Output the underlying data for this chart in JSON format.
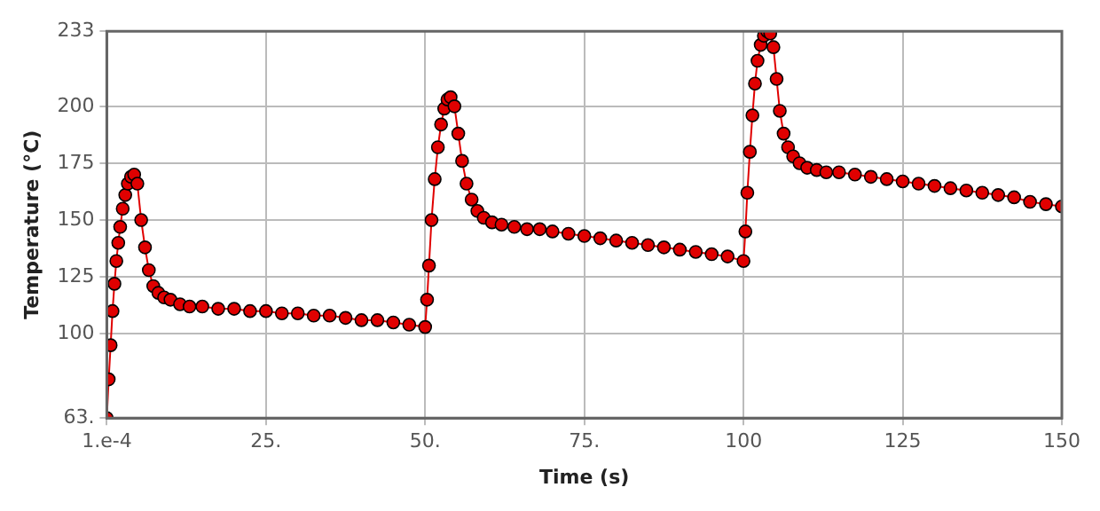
{
  "chart_data": {
    "type": "line",
    "xlabel": "Time (s)",
    "ylabel": "Temperature (°C)",
    "xlim": [
      0.0001,
      150
    ],
    "ylim": [
      63,
      233
    ],
    "xticks": [
      {
        "value": 0.0001,
        "label": "1.e-4"
      },
      {
        "value": 25,
        "label": "25."
      },
      {
        "value": 50,
        "label": "50."
      },
      {
        "value": 75,
        "label": "75."
      },
      100,
      125,
      150
    ],
    "yticks": [
      {
        "value": 63,
        "label": "63."
      },
      100,
      125,
      150,
      175,
      200,
      233
    ],
    "grid": true,
    "marker": "circle",
    "line_style": "solid",
    "series": [
      {
        "color": "#e00000",
        "x": [
          0.0001,
          0.3,
          0.6,
          0.9,
          1.2,
          1.5,
          1.8,
          2.1,
          2.5,
          2.9,
          3.3,
          3.8,
          4.3,
          4.8,
          5.4,
          6.0,
          6.6,
          7.3,
          8.1,
          9,
          10,
          11.5,
          13,
          15,
          17.5,
          20,
          22.5,
          25,
          27.5,
          30,
          32.5,
          35,
          37.5,
          40,
          42.5,
          45,
          47.5,
          50,
          50.3,
          50.6,
          51,
          51.5,
          52,
          52.5,
          53,
          53.5,
          54,
          54.6,
          55.2,
          55.8,
          56.5,
          57.3,
          58.2,
          59.2,
          60.5,
          62,
          64,
          66,
          68,
          70,
          72.5,
          75,
          77.5,
          80,
          82.5,
          85,
          87.5,
          90,
          92.5,
          95,
          97.5,
          100,
          100.3,
          100.6,
          101,
          101.4,
          101.8,
          102.2,
          102.7,
          103.2,
          103.7,
          104.2,
          104.7,
          105.2,
          105.7,
          106.3,
          107,
          107.8,
          108.8,
          110,
          111.5,
          113,
          115,
          117.5,
          120,
          122.5,
          125,
          127.5,
          130,
          132.5,
          135,
          137.5,
          140,
          142.5,
          145,
          147.5,
          150
        ],
        "values": [
          63,
          80,
          95,
          110,
          122,
          132,
          140,
          147,
          155,
          161,
          166,
          169,
          170,
          166,
          150,
          138,
          128,
          121,
          118,
          116,
          115,
          113,
          112,
          112,
          111,
          111,
          110,
          110,
          109,
          109,
          108,
          108,
          107,
          106,
          106,
          105,
          104,
          103,
          115,
          130,
          150,
          168,
          182,
          192,
          199,
          203,
          204,
          200,
          188,
          176,
          166,
          159,
          154,
          151,
          149,
          148,
          147,
          146,
          146,
          145,
          144,
          143,
          142,
          141,
          140,
          139,
          138,
          137,
          136,
          135,
          134,
          132,
          145,
          162,
          180,
          196,
          210,
          220,
          227,
          231,
          233,
          232,
          226,
          212,
          198,
          188,
          182,
          178,
          175,
          173,
          172,
          171,
          171,
          170,
          169,
          168,
          167,
          166,
          165,
          164,
          163,
          162,
          161,
          160,
          158,
          157,
          156
        ]
      }
    ]
  }
}
